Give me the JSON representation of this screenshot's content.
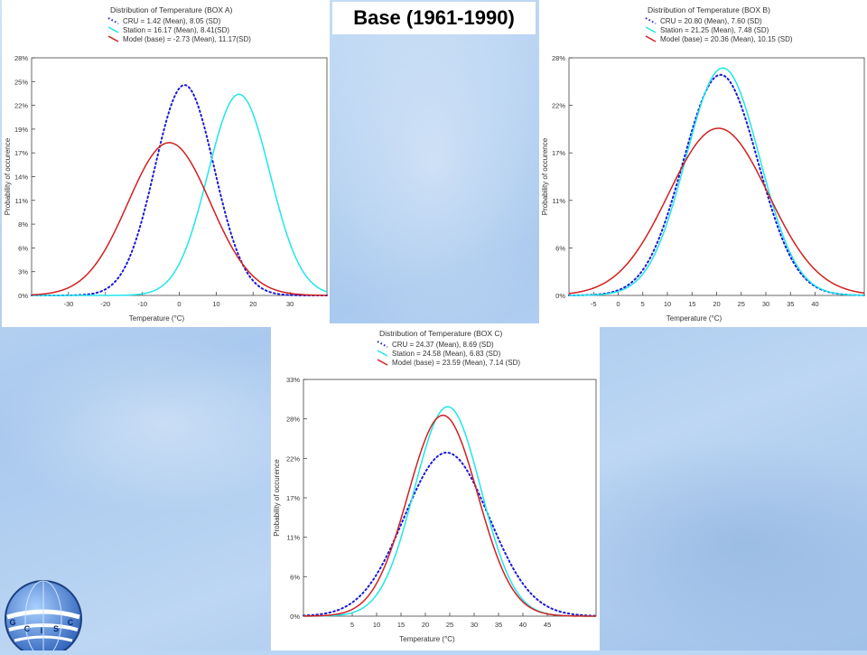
{
  "slide_title": "Base (1961-1990)",
  "colors": {
    "cru": "#1a1ad6",
    "station": "#1fe6ea",
    "model": "#d21f1f"
  },
  "chart_data": [
    {
      "id": "A",
      "type": "line",
      "title": "Distribution of Temperature (BOX A)",
      "xlabel": "Temperature (°C)",
      "ylabel": "Probability of occurence",
      "xlim": [
        -40,
        40
      ],
      "ylim": [
        0,
        28
      ],
      "xticks": [
        -30,
        -20,
        -10,
        0,
        10,
        20,
        30
      ],
      "xtick_labels": [
        "-30",
        "-20",
        "-10",
        "0",
        "10",
        "20",
        "30"
      ],
      "yticks": [
        0,
        2.8,
        5.6,
        8.4,
        11.2,
        14,
        16.8,
        19.6,
        22.4,
        25.2,
        28
      ],
      "ytick_labels": [
        "0%",
        "3%",
        "6%",
        "8%",
        "11%",
        "14%",
        "17%",
        "19%",
        "22%",
        "25%",
        "28%"
      ],
      "series": [
        {
          "key": "cru",
          "name": "CRU = 1.42 (Mean), 8.05 (SD)",
          "mean": 1.42,
          "sd": 8.05,
          "peak": 24.8
        },
        {
          "key": "station",
          "name": "Station = 16.17 (Mean), 8.41(SD)",
          "mean": 16.17,
          "sd": 8.41,
          "peak": 23.7
        },
        {
          "key": "model",
          "name": "Model (base) = -2.73 (Mean), 11.17(SD)",
          "mean": -2.73,
          "sd": 11.17,
          "peak": 18.0
        }
      ]
    },
    {
      "id": "B",
      "type": "line",
      "title": "Distribution of Temperature (BOX B)",
      "xlabel": "Temperature (°C)",
      "ylabel": "Probability of occurence",
      "xlim": [
        -10,
        50
      ],
      "ylim": [
        0,
        28
      ],
      "xticks": [
        -5,
        0,
        5,
        10,
        15,
        20,
        25,
        30,
        35,
        40
      ],
      "xtick_labels": [
        "-5",
        "0",
        "5",
        "10",
        "15",
        "20",
        "25",
        "30",
        "35",
        "40"
      ],
      "yticks": [
        0,
        5.6,
        11.2,
        16.8,
        22.4,
        28
      ],
      "ytick_labels": [
        "0%",
        "6%",
        "11%",
        "17%",
        "22%",
        "28%"
      ],
      "series": [
        {
          "key": "cru",
          "name": "CRU = 20.80 (Mean), 7.60 (SD)",
          "mean": 20.8,
          "sd": 7.6,
          "peak": 26.0
        },
        {
          "key": "station",
          "name": "Station = 21.25 (Mean), 7.48 (SD)",
          "mean": 21.25,
          "sd": 7.48,
          "peak": 26.8
        },
        {
          "key": "model",
          "name": "Model (base) = 20.36 (Mean), 10.15 (SD)",
          "mean": 20.36,
          "sd": 10.15,
          "peak": 19.7
        }
      ]
    },
    {
      "id": "C",
      "type": "line",
      "title": "Distribution of Temperature (BOX C)",
      "xlabel": "Temperature (°C)",
      "ylabel": "Probability of occurence",
      "xlim": [
        -5,
        55
      ],
      "ylim": [
        0,
        33
      ],
      "xticks": [
        5,
        10,
        15,
        20,
        25,
        30,
        35,
        40,
        45
      ],
      "xtick_labels": [
        "5",
        "10",
        "15",
        "20",
        "25",
        "30",
        "35",
        "40",
        "45"
      ],
      "yticks": [
        0,
        5.5,
        11,
        16.5,
        22,
        27.5,
        33
      ],
      "ytick_labels": [
        "0%",
        "6%",
        "11%",
        "17%",
        "22%",
        "28%",
        "33%"
      ],
      "series": [
        {
          "key": "cru",
          "name": "CRU = 24.37 (Mean), 8.69 (SD)",
          "mean": 24.37,
          "sd": 8.69,
          "peak": 22.8
        },
        {
          "key": "station",
          "name": "Station = 24.58 (Mean), 6.83 (SD)",
          "mean": 24.58,
          "sd": 6.83,
          "peak": 29.2
        },
        {
          "key": "model",
          "name": "Model (base) = 23.59 (Mean), 7.14 (SD)",
          "mean": 23.59,
          "sd": 7.14,
          "peak": 28.0
        }
      ]
    }
  ],
  "logo": {
    "text": "G C I S C",
    "icon": "globe-logo-icon"
  }
}
